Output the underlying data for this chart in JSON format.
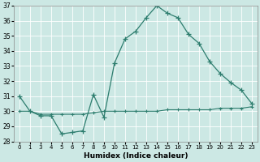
{
  "x_hours": [
    0,
    1,
    3,
    4,
    5,
    6,
    7,
    8,
    9,
    10,
    11,
    12,
    13,
    14,
    15,
    16,
    17,
    18,
    19,
    20,
    21,
    22,
    23
  ],
  "y_main": [
    31.0,
    30.0,
    29.7,
    29.7,
    28.5,
    28.6,
    28.7,
    31.1,
    29.6,
    33.2,
    34.8,
    35.3,
    36.2,
    37.0,
    36.5,
    36.2,
    35.1,
    34.5,
    33.3,
    32.5,
    31.9,
    31.4,
    30.5
  ],
  "y_flat": [
    30.0,
    30.0,
    29.8,
    29.8,
    29.8,
    29.8,
    29.8,
    29.9,
    30.0,
    30.0,
    30.0,
    30.0,
    30.0,
    30.0,
    30.1,
    30.1,
    30.1,
    30.1,
    30.1,
    30.2,
    30.2,
    30.2,
    30.3
  ],
  "xlabel": "Humidex (Indice chaleur)",
  "ylim": [
    28,
    37
  ],
  "yticks": [
    28,
    29,
    30,
    31,
    32,
    33,
    34,
    35,
    36,
    37
  ],
  "line_color": "#2d7d6e",
  "bg_color": "#cce8e4",
  "grid_color": "#b8d8d4",
  "grid_color_minor": "#d0e8e4"
}
